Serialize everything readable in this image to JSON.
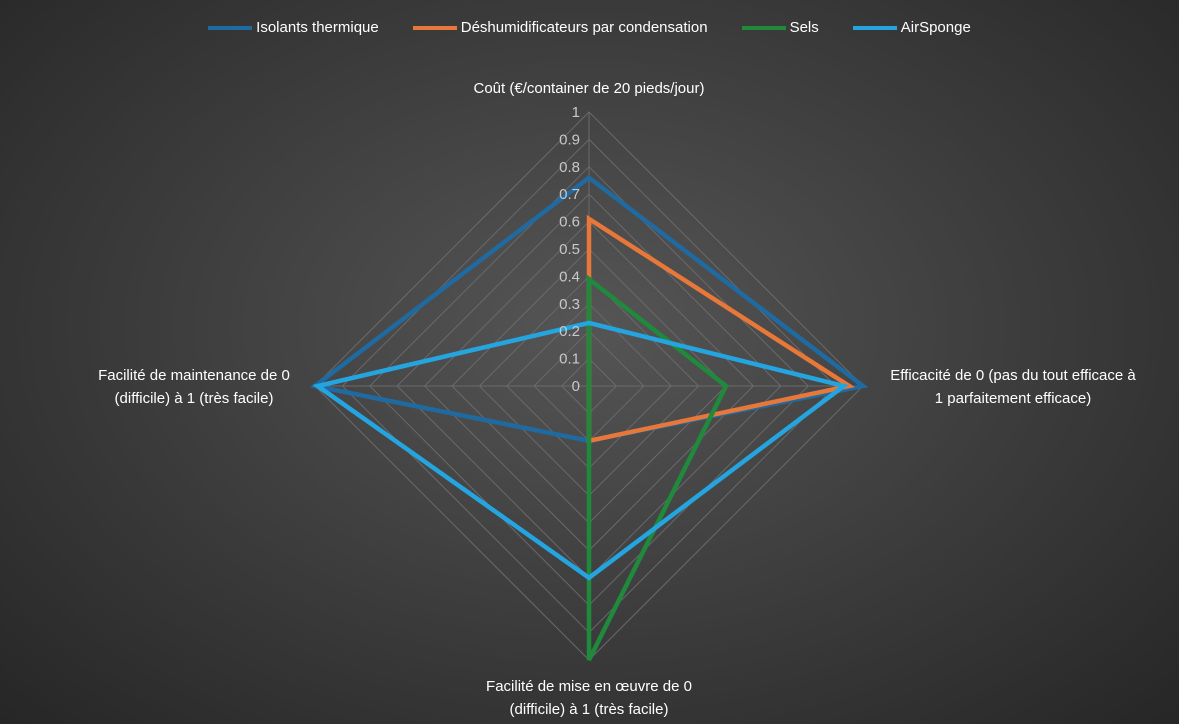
{
  "chart_data": {
    "type": "radar",
    "axes": [
      [
        "Coût (€/container de 20 pieds/jour)"
      ],
      [
        "Efficacité de 0 (pas du tout efficace à",
        "1 parfaitement efficace)"
      ],
      [
        "Facilité de mise en œuvre  de 0",
        "(difficile) à 1 (très facile)"
      ],
      [
        "Facilité de maintenance de 0",
        "(difficile)  à 1 (très facile)"
      ]
    ],
    "ticks": [
      "0",
      "0.1",
      "0.2",
      "0.3",
      "0.4",
      "0.5",
      "0.6",
      "0.7",
      "0.8",
      "0.9",
      "1"
    ],
    "range": [
      0,
      1
    ],
    "grid": true,
    "legend_position": "top",
    "series": [
      {
        "name": "Isolants thermique",
        "color": "#1f6aa0",
        "values": [
          0.76,
          1.0,
          0.2,
          1.0
        ]
      },
      {
        "name": "Déshumidificateurs par condensation",
        "color": "#e8773a",
        "values": [
          0.61,
          0.95,
          0.2,
          0.0
        ]
      },
      {
        "name": "Sels",
        "color": "#1f8a3c",
        "values": [
          0.39,
          0.5,
          1.0,
          0.0
        ]
      },
      {
        "name": "AirSponge",
        "color": "#24a5e0",
        "values": [
          0.23,
          0.93,
          0.7,
          0.99
        ]
      }
    ]
  }
}
